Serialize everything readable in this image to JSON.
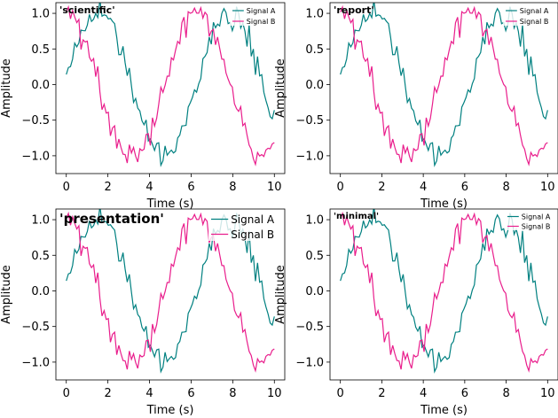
{
  "chart_data": [
    {
      "type": "line",
      "title": "'scientific'",
      "xlabel": "Time (s)",
      "ylabel": "Amplitude",
      "xlim": [
        -0.5,
        10.5
      ],
      "ylim": [
        -1.25,
        1.15
      ],
      "xticks": [
        0,
        2,
        4,
        6,
        8,
        10
      ],
      "yticks": [
        -1.0,
        -0.5,
        0.0,
        0.5,
        1.0
      ],
      "xtick_labels": [
        "0",
        "2",
        "4",
        "6",
        "8",
        "10"
      ],
      "ytick_labels": [
        "−1.0",
        "−0.5",
        "0.0",
        "0.5",
        "1.0"
      ],
      "legend": "top-right",
      "grid": false,
      "series": [
        {
          "name": "Signal A",
          "color": "#008080",
          "function": "sin(x) + noise",
          "x_range": [
            0,
            10
          ]
        },
        {
          "name": "Signal B",
          "color": "#e91e8c",
          "function": "cos(x) + noise",
          "x_range": [
            0,
            10
          ]
        }
      ]
    },
    {
      "type": "line",
      "title": "'report'",
      "xlabel": "Time (s)",
      "ylabel": "Amplitude",
      "xlim": [
        -0.5,
        10.5
      ],
      "ylim": [
        -1.25,
        1.15
      ],
      "xticks": [
        0,
        2,
        4,
        6,
        8,
        10
      ],
      "yticks": [
        -1.0,
        -0.5,
        0.0,
        0.5,
        1.0
      ],
      "xtick_labels": [
        "0",
        "2",
        "4",
        "6",
        "8",
        "10"
      ],
      "ytick_labels": [
        "−1.0",
        "−0.5",
        "0.0",
        "0.5",
        "1.0"
      ],
      "legend": "top-right",
      "grid": false,
      "series": [
        {
          "name": "Signal A",
          "color": "#008080",
          "function": "sin(x) + noise",
          "x_range": [
            0,
            10
          ]
        },
        {
          "name": "Signal B",
          "color": "#e91e8c",
          "function": "cos(x) + noise",
          "x_range": [
            0,
            10
          ]
        }
      ]
    },
    {
      "type": "line",
      "title": "'presentation'",
      "xlabel": "Time (s)",
      "ylabel": "Amplitude",
      "xlim": [
        -0.5,
        10.5
      ],
      "ylim": [
        -1.25,
        1.15
      ],
      "xticks": [
        0,
        2,
        4,
        6,
        8,
        10
      ],
      "yticks": [
        -1.0,
        -0.5,
        0.0,
        0.5,
        1.0
      ],
      "xtick_labels": [
        "0",
        "2",
        "4",
        "6",
        "8",
        "10"
      ],
      "ytick_labels": [
        "−1.0",
        "−0.5",
        "0.0",
        "0.5",
        "1.0"
      ],
      "legend": "top-right",
      "grid": false,
      "series": [
        {
          "name": "Signal A",
          "color": "#008080",
          "function": "sin(x) + noise",
          "x_range": [
            0,
            10
          ]
        },
        {
          "name": "Signal B",
          "color": "#e91e8c",
          "function": "cos(x) + noise",
          "x_range": [
            0,
            10
          ]
        }
      ]
    },
    {
      "type": "line",
      "title": "'minimal'",
      "xlabel": "Time (s)",
      "ylabel": "Amplitude",
      "xlim": [
        -0.5,
        10.5
      ],
      "ylim": [
        -1.25,
        1.15
      ],
      "xticks": [
        0,
        2,
        4,
        6,
        8,
        10
      ],
      "yticks": [
        -1.0,
        -0.5,
        0.0,
        0.5,
        1.0
      ],
      "xtick_labels": [
        "0",
        "2",
        "4",
        "6",
        "8",
        "10"
      ],
      "ytick_labels": [
        "−1.0",
        "−0.5",
        "0.0",
        "0.5",
        "1.0"
      ],
      "legend": "top-right",
      "grid": false,
      "series": [
        {
          "name": "Signal A",
          "color": "#008080",
          "function": "sin(x) + noise",
          "x_range": [
            0,
            10
          ]
        },
        {
          "name": "Signal B",
          "color": "#e91e8c",
          "function": "cos(x) + noise",
          "x_range": [
            0,
            10
          ]
        }
      ]
    }
  ]
}
